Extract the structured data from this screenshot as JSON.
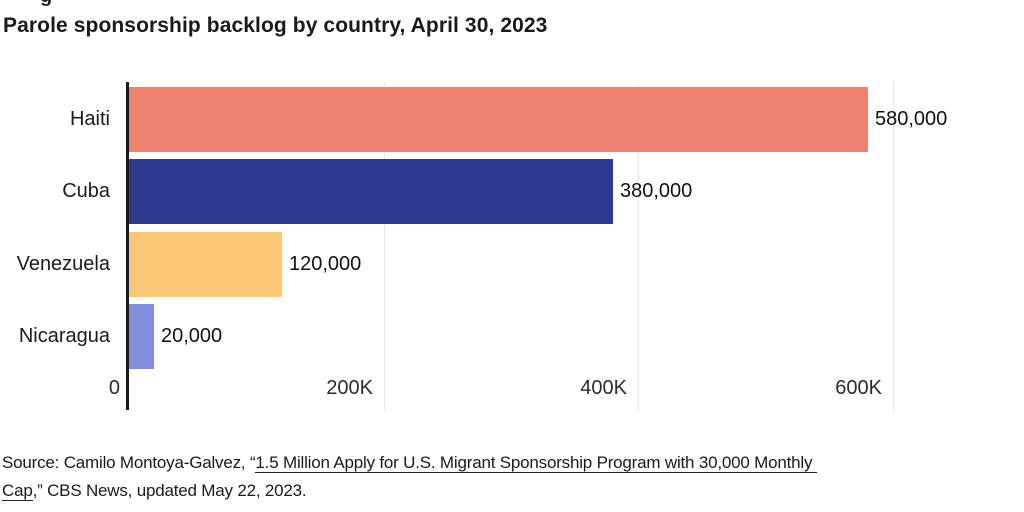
{
  "header": {
    "fragment_glyph": "g",
    "title": "Parole sponsorship backlog by country, April 30, 2023"
  },
  "chart_data": {
    "type": "bar",
    "orientation": "horizontal",
    "title": "Parole sponsorship backlog by country, April 30, 2023",
    "categories": [
      "Haiti",
      "Cuba",
      "Venezuela",
      "Nicaragua"
    ],
    "values": [
      580000,
      380000,
      120000,
      20000
    ],
    "value_labels": [
      "580,000",
      "380,000",
      "120,000",
      "20,000"
    ],
    "bar_colors": [
      "#ef8170",
      "#2c3b8e",
      "#fdc778",
      "#8090de"
    ],
    "x_ticks": [
      {
        "value": 0,
        "label": "0"
      },
      {
        "value": 200000,
        "label": "200K"
      },
      {
        "value": 400000,
        "label": "400K"
      },
      {
        "value": 600000,
        "label": "600K"
      }
    ],
    "xlim": [
      0,
      654000
    ],
    "grid": true,
    "gridline_color": "#e8e8e8",
    "axis_color": "#1a1a1a",
    "legend": "none",
    "value_labels_position": "outside-end"
  },
  "source": {
    "prefix": "Source: Camilo Montoya-Galvez, “",
    "link_line1": "1.5 Million Apply for U.S. Migrant Sponsorship Program with 30,000 Monthly",
    "link_line2": "Cap",
    "suffix": ",” CBS News, updated May 22, 2023."
  }
}
